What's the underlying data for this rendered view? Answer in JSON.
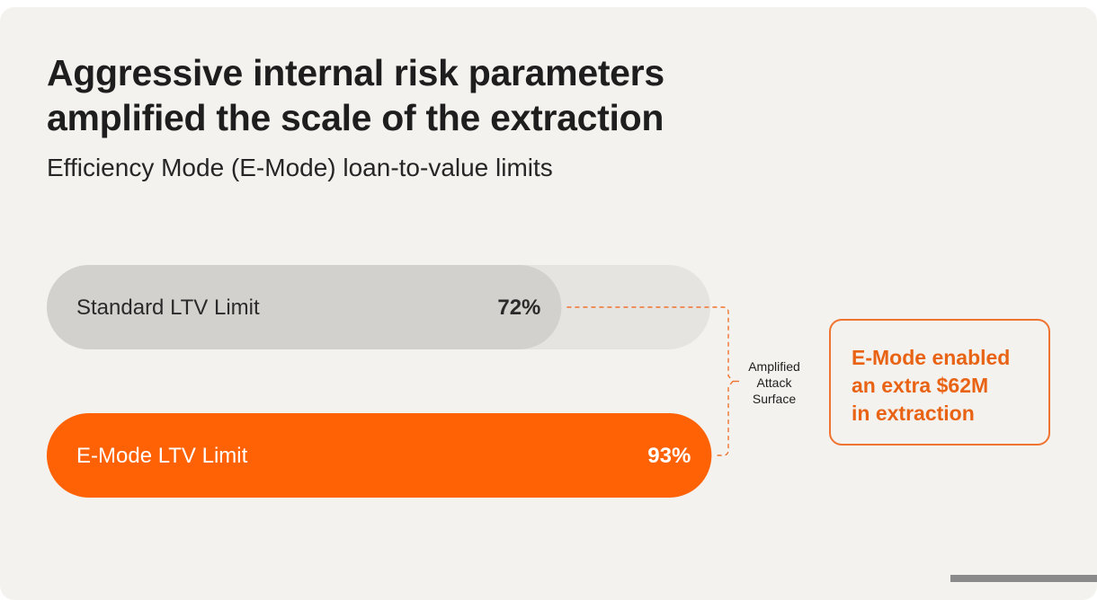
{
  "title_lines": [
    "Aggressive internal risk parameters",
    "amplified the scale of the extraction"
  ],
  "subtitle": "Efficiency Mode (E-Mode) loan-to-value limits",
  "chart_data": {
    "type": "bar",
    "orientation": "horizontal",
    "categories": [
      "Standard LTV Limit",
      "E-Mode LTV Limit"
    ],
    "values": [
      72,
      93
    ],
    "value_labels": [
      "72%",
      "93%"
    ],
    "unit": "%",
    "xlim": [
      0,
      100
    ],
    "bar_colors": [
      "#d3d1cd",
      "#ff6105"
    ],
    "track_color": "#e6e4e0",
    "annotation": [
      "Amplified",
      "Attack",
      "Surface"
    ],
    "annotation_color": "#f0732f"
  },
  "callout_lines": [
    "E-Mode enabled",
    "an extra $62M",
    "in extraction"
  ],
  "colors": {
    "background": "#f4f2ee",
    "accent": "#ff6105",
    "callout_text": "#e96314",
    "callout_border": "#f0732f",
    "text_dark": "#1e1e1e"
  }
}
